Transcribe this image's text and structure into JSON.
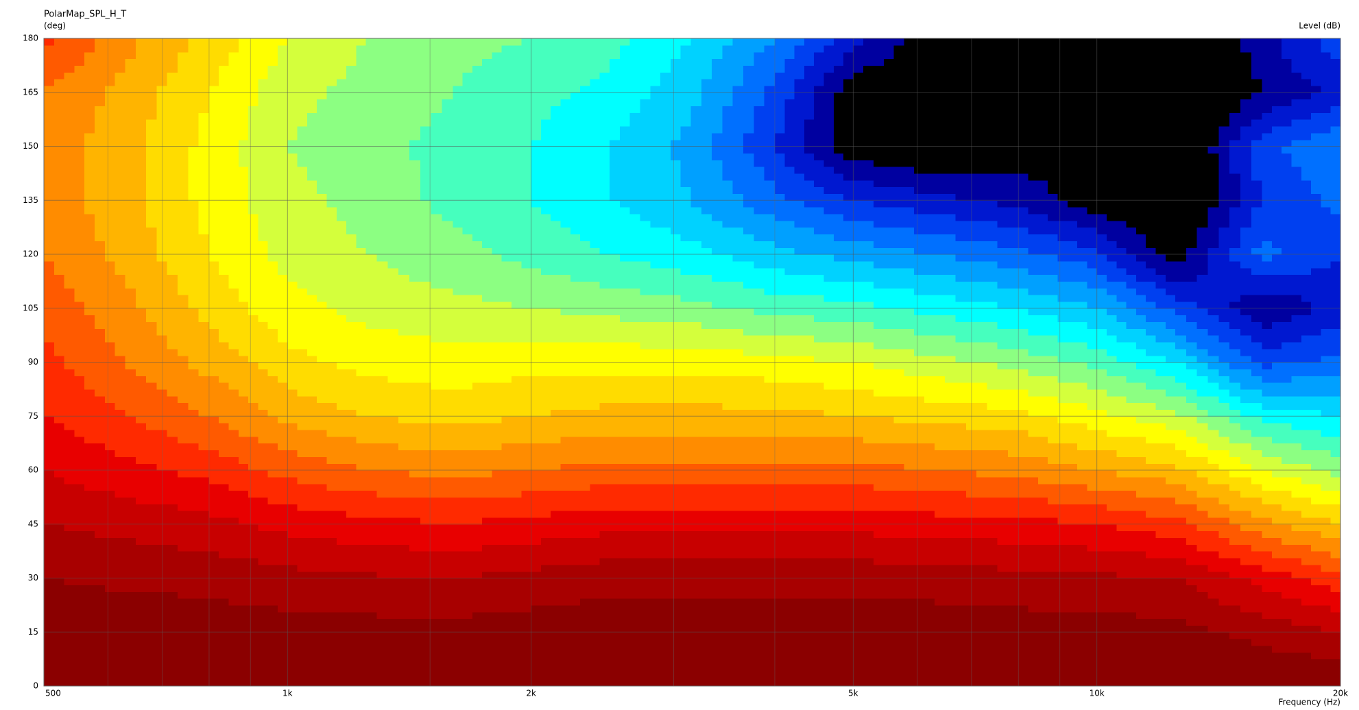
{
  "chart_data": {
    "type": "contour",
    "title": "PolarMap_SPL_H_T",
    "y_label": "(deg)",
    "z_label": "Level (dB)",
    "x_label": "Frequency (Hz)",
    "x_scale": "log",
    "grid": true,
    "xlim": [
      500,
      20000
    ],
    "ylim": [
      0,
      180
    ],
    "xticks": [
      500,
      {
        "value": 1000,
        "label": "1k"
      },
      {
        "value": 2000,
        "label": "2k"
      },
      {
        "value": 5000,
        "label": "5k"
      },
      {
        "value": 10000,
        "label": "10k"
      },
      {
        "value": 20000,
        "label": "20k"
      }
    ],
    "xminorticks": [
      600,
      700,
      800,
      900,
      1500,
      3000,
      4000,
      6000,
      7000,
      8000,
      9000
    ],
    "yticks": [
      0,
      15,
      30,
      45,
      60,
      75,
      90,
      105,
      120,
      135,
      150,
      165,
      180
    ],
    "x": [
      500,
      630,
      800,
      1000,
      1250,
      1600,
      2000,
      2500,
      3150,
      4000,
      5000,
      6300,
      8000,
      10000,
      12500,
      16000,
      20000
    ],
    "y": [
      0,
      15,
      30,
      45,
      60,
      75,
      90,
      105,
      120,
      135,
      150,
      165,
      180
    ],
    "z": [
      [
        0,
        0,
        0,
        0,
        0,
        0,
        0,
        0,
        0,
        0,
        0,
        0,
        0,
        0,
        0,
        0,
        0
      ],
      [
        -0.5,
        -0.5,
        -0.6,
        -0.8,
        -0.9,
        -0.9,
        -0.7,
        -0.5,
        -0.5,
        -0.5,
        -0.5,
        -0.6,
        -0.7,
        -0.8,
        -1,
        -2,
        -3
      ],
      [
        -1.5,
        -1.8,
        -2,
        -2.5,
        -2.8,
        -3,
        -2.5,
        -2,
        -2,
        -2,
        -2,
        -2.2,
        -2.5,
        -2.7,
        -3,
        -5,
        -7
      ],
      [
        -3,
        -3.5,
        -4,
        -5,
        -5.5,
        -6,
        -5.5,
        -5,
        -5,
        -5,
        -5,
        -5.3,
        -5.5,
        -6,
        -7,
        -10,
        -12
      ],
      [
        -4.5,
        -5.5,
        -6.5,
        -8,
        -9,
        -9.5,
        -9,
        -8.5,
        -8.5,
        -8.5,
        -8.5,
        -9,
        -9.5,
        -10.5,
        -11.5,
        -15,
        -17
      ],
      [
        -6,
        -7.5,
        -9,
        -11,
        -12,
        -12.5,
        -12,
        -11.5,
        -11.5,
        -11.5,
        -12,
        -12.5,
        -13,
        -14.5,
        -16,
        -20,
        -21
      ],
      [
        -7,
        -9,
        -11,
        -13,
        -14,
        -14.5,
        -14,
        -14,
        -14,
        -14.5,
        -15,
        -16,
        -17,
        -18.5,
        -21,
        -26,
        -25
      ],
      [
        -8,
        -10,
        -12.5,
        -14.5,
        -15.5,
        -16,
        -16.5,
        -17,
        -17.5,
        -18.5,
        -19,
        -20,
        -21,
        -22.5,
        -26,
        -30,
        -28
      ],
      [
        -9,
        -11,
        -13.5,
        -15.5,
        -16.5,
        -17.5,
        -18.5,
        -19.5,
        -20.5,
        -22,
        -23,
        -24,
        -25,
        -26.5,
        -31,
        -25,
        -27
      ],
      [
        -9.5,
        -11.5,
        -14,
        -16,
        -17,
        -18.5,
        -19.5,
        -21,
        -22.5,
        -25,
        -27,
        -28,
        -29,
        -31,
        -33,
        -27,
        -25
      ],
      [
        -9.5,
        -11.5,
        -14,
        -16.5,
        -17.5,
        -18.5,
        -19.5,
        -21,
        -23,
        -27,
        -31,
        -32,
        -31,
        -30,
        -33,
        -26,
        -24
      ],
      [
        -9,
        -11,
        -13.5,
        -16,
        -17,
        -18,
        -19,
        -20,
        -22,
        -26,
        -31,
        -32,
        -33,
        -33,
        -33,
        -30,
        -28
      ],
      [
        -7,
        -10,
        -12.5,
        -15,
        -16.5,
        -17.5,
        -18,
        -19,
        -21,
        -24,
        -28,
        -31,
        -33,
        -33,
        -33,
        -29,
        -26
      ]
    ],
    "contour_levels": [
      [
        -1.5,
        "#8b0000"
      ],
      [
        -3,
        "#a80000"
      ],
      [
        -4.5,
        "#c80000"
      ],
      [
        -6,
        "#e80000"
      ],
      [
        -7.5,
        "#ff2a00"
      ],
      [
        -9,
        "#ff5a00"
      ],
      [
        -10.5,
        "#ff8c00"
      ],
      [
        -12,
        "#ffb400"
      ],
      [
        -13.5,
        "#ffdc00"
      ],
      [
        -15,
        "#ffff00"
      ],
      [
        -16.5,
        "#d4ff3c"
      ],
      [
        -18,
        "#8cff82"
      ],
      [
        -19.5,
        "#46ffbe"
      ],
      [
        -21,
        "#00ffff"
      ],
      [
        -22.5,
        "#00d2ff"
      ],
      [
        -24,
        "#00a0ff"
      ],
      [
        -25.5,
        "#0070ff"
      ],
      [
        -27,
        "#0040f0"
      ],
      [
        -28.5,
        "#0018d0"
      ],
      [
        -30,
        "#0000a0"
      ]
    ],
    "below_color": "#000000"
  }
}
